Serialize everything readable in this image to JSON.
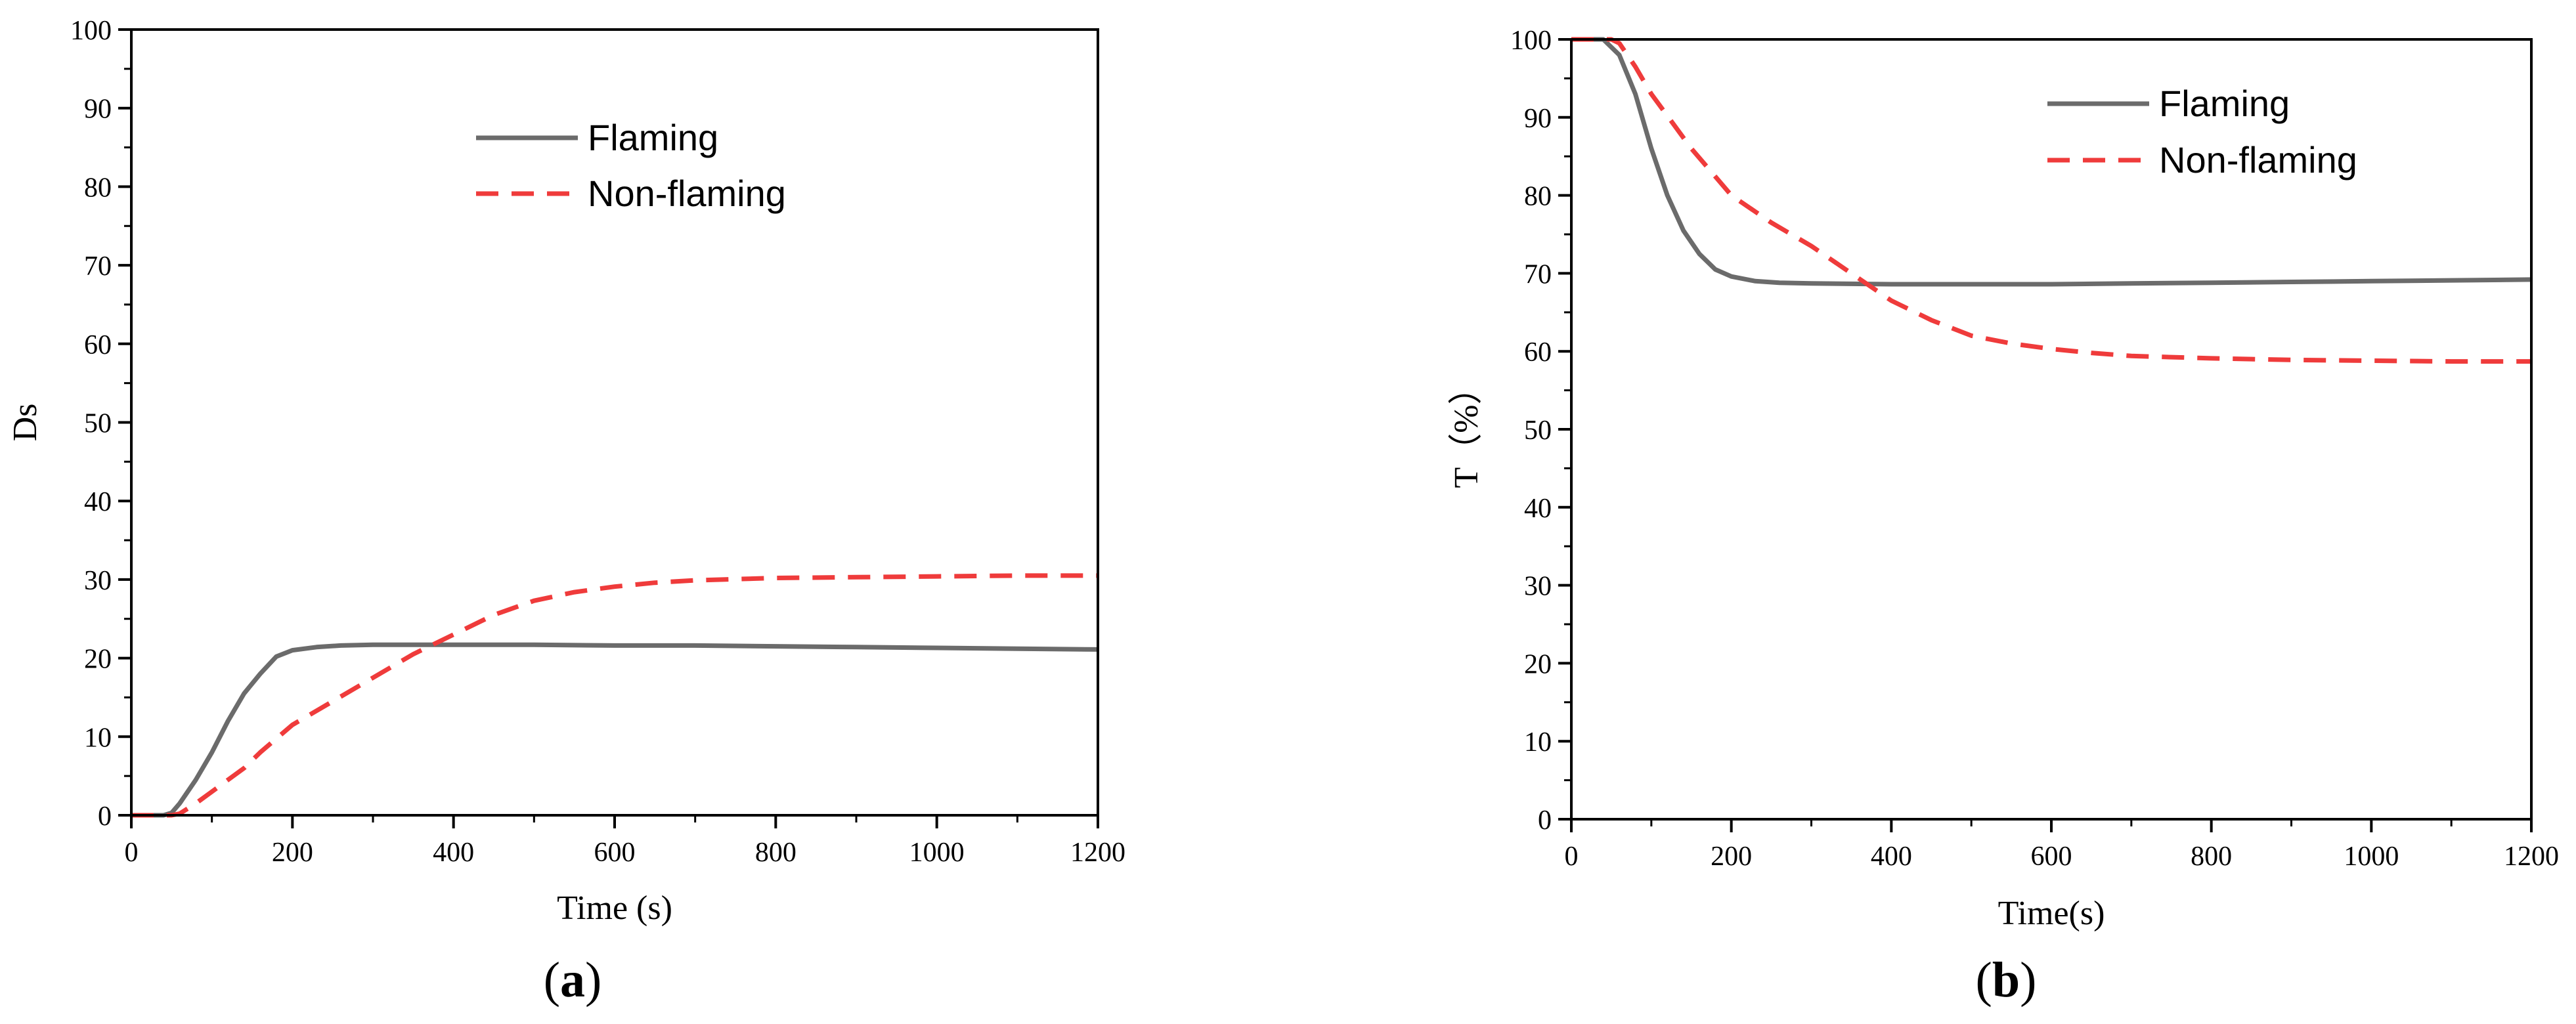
{
  "colors": {
    "flaming": "#6b6b6b",
    "non_flaming": "#ef3b3b",
    "axis": "#000000"
  },
  "chart_data": [
    {
      "type": "line",
      "panel": "(a)",
      "panel_letter": "a",
      "xlabel": "Time (s)",
      "ylabel": "Ds",
      "xlim": [
        0,
        1200
      ],
      "ylim": [
        0,
        100
      ],
      "xticks": [
        0,
        200,
        400,
        600,
        800,
        1000,
        1200
      ],
      "yticks": [
        0,
        10,
        20,
        30,
        40,
        50,
        60,
        70,
        80,
        90,
        100
      ],
      "grid": false,
      "legend_position": "top-center",
      "series": [
        {
          "name": "Flaming",
          "style": "solid",
          "x": [
            0,
            40,
            50,
            60,
            80,
            100,
            120,
            140,
            160,
            180,
            200,
            230,
            260,
            300,
            400,
            500,
            600,
            700,
            800,
            900,
            1000,
            1100,
            1200
          ],
          "y": [
            0,
            0,
            0.3,
            1.5,
            4.5,
            8,
            12,
            15.5,
            18,
            20.2,
            21,
            21.4,
            21.6,
            21.7,
            21.7,
            21.7,
            21.6,
            21.6,
            21.5,
            21.4,
            21.3,
            21.2,
            21.1
          ]
        },
        {
          "name": "Non-flaming",
          "style": "dashed",
          "x": [
            0,
            50,
            60,
            80,
            100,
            120,
            140,
            160,
            200,
            250,
            300,
            350,
            400,
            450,
            500,
            550,
            600,
            650,
            700,
            800,
            900,
            1000,
            1100,
            1200
          ],
          "y": [
            0,
            0,
            0.2,
            1.5,
            3,
            4.5,
            6,
            8,
            11.5,
            14.5,
            17.5,
            20.5,
            23,
            25.5,
            27.3,
            28.4,
            29.1,
            29.6,
            29.9,
            30.2,
            30.3,
            30.4,
            30.5,
            30.5
          ]
        }
      ]
    },
    {
      "type": "line",
      "panel": "(b)",
      "panel_letter": "b",
      "xlabel": "Time(s)",
      "ylabel": "T（%）",
      "xlim": [
        0,
        1200
      ],
      "ylim": [
        0,
        100
      ],
      "xticks": [
        0,
        200,
        400,
        600,
        800,
        1000,
        1200
      ],
      "yticks": [
        0,
        10,
        20,
        30,
        40,
        50,
        60,
        70,
        80,
        90,
        100
      ],
      "grid": false,
      "legend_position": "top-right",
      "series": [
        {
          "name": "Flaming",
          "style": "solid",
          "x": [
            0,
            40,
            60,
            80,
            100,
            120,
            140,
            160,
            180,
            200,
            230,
            260,
            300,
            400,
            500,
            600,
            700,
            800,
            900,
            1000,
            1100,
            1200
          ],
          "y": [
            100,
            100,
            98,
            93,
            86,
            80,
            75.5,
            72.5,
            70.5,
            69.6,
            69,
            68.8,
            68.7,
            68.6,
            68.6,
            68.6,
            68.7,
            68.8,
            68.9,
            69,
            69.1,
            69.2
          ]
        },
        {
          "name": "Non-flaming",
          "style": "dashed",
          "x": [
            0,
            50,
            60,
            80,
            100,
            150,
            200,
            250,
            300,
            350,
            400,
            450,
            500,
            550,
            600,
            650,
            700,
            800,
            900,
            1000,
            1100,
            1200
          ],
          "y": [
            100,
            100,
            99.5,
            96.5,
            93,
            86,
            80,
            76.5,
            73.5,
            70,
            66.5,
            64,
            62,
            61,
            60.3,
            59.8,
            59.4,
            59.1,
            58.9,
            58.8,
            58.7,
            58.7
          ]
        }
      ]
    }
  ]
}
